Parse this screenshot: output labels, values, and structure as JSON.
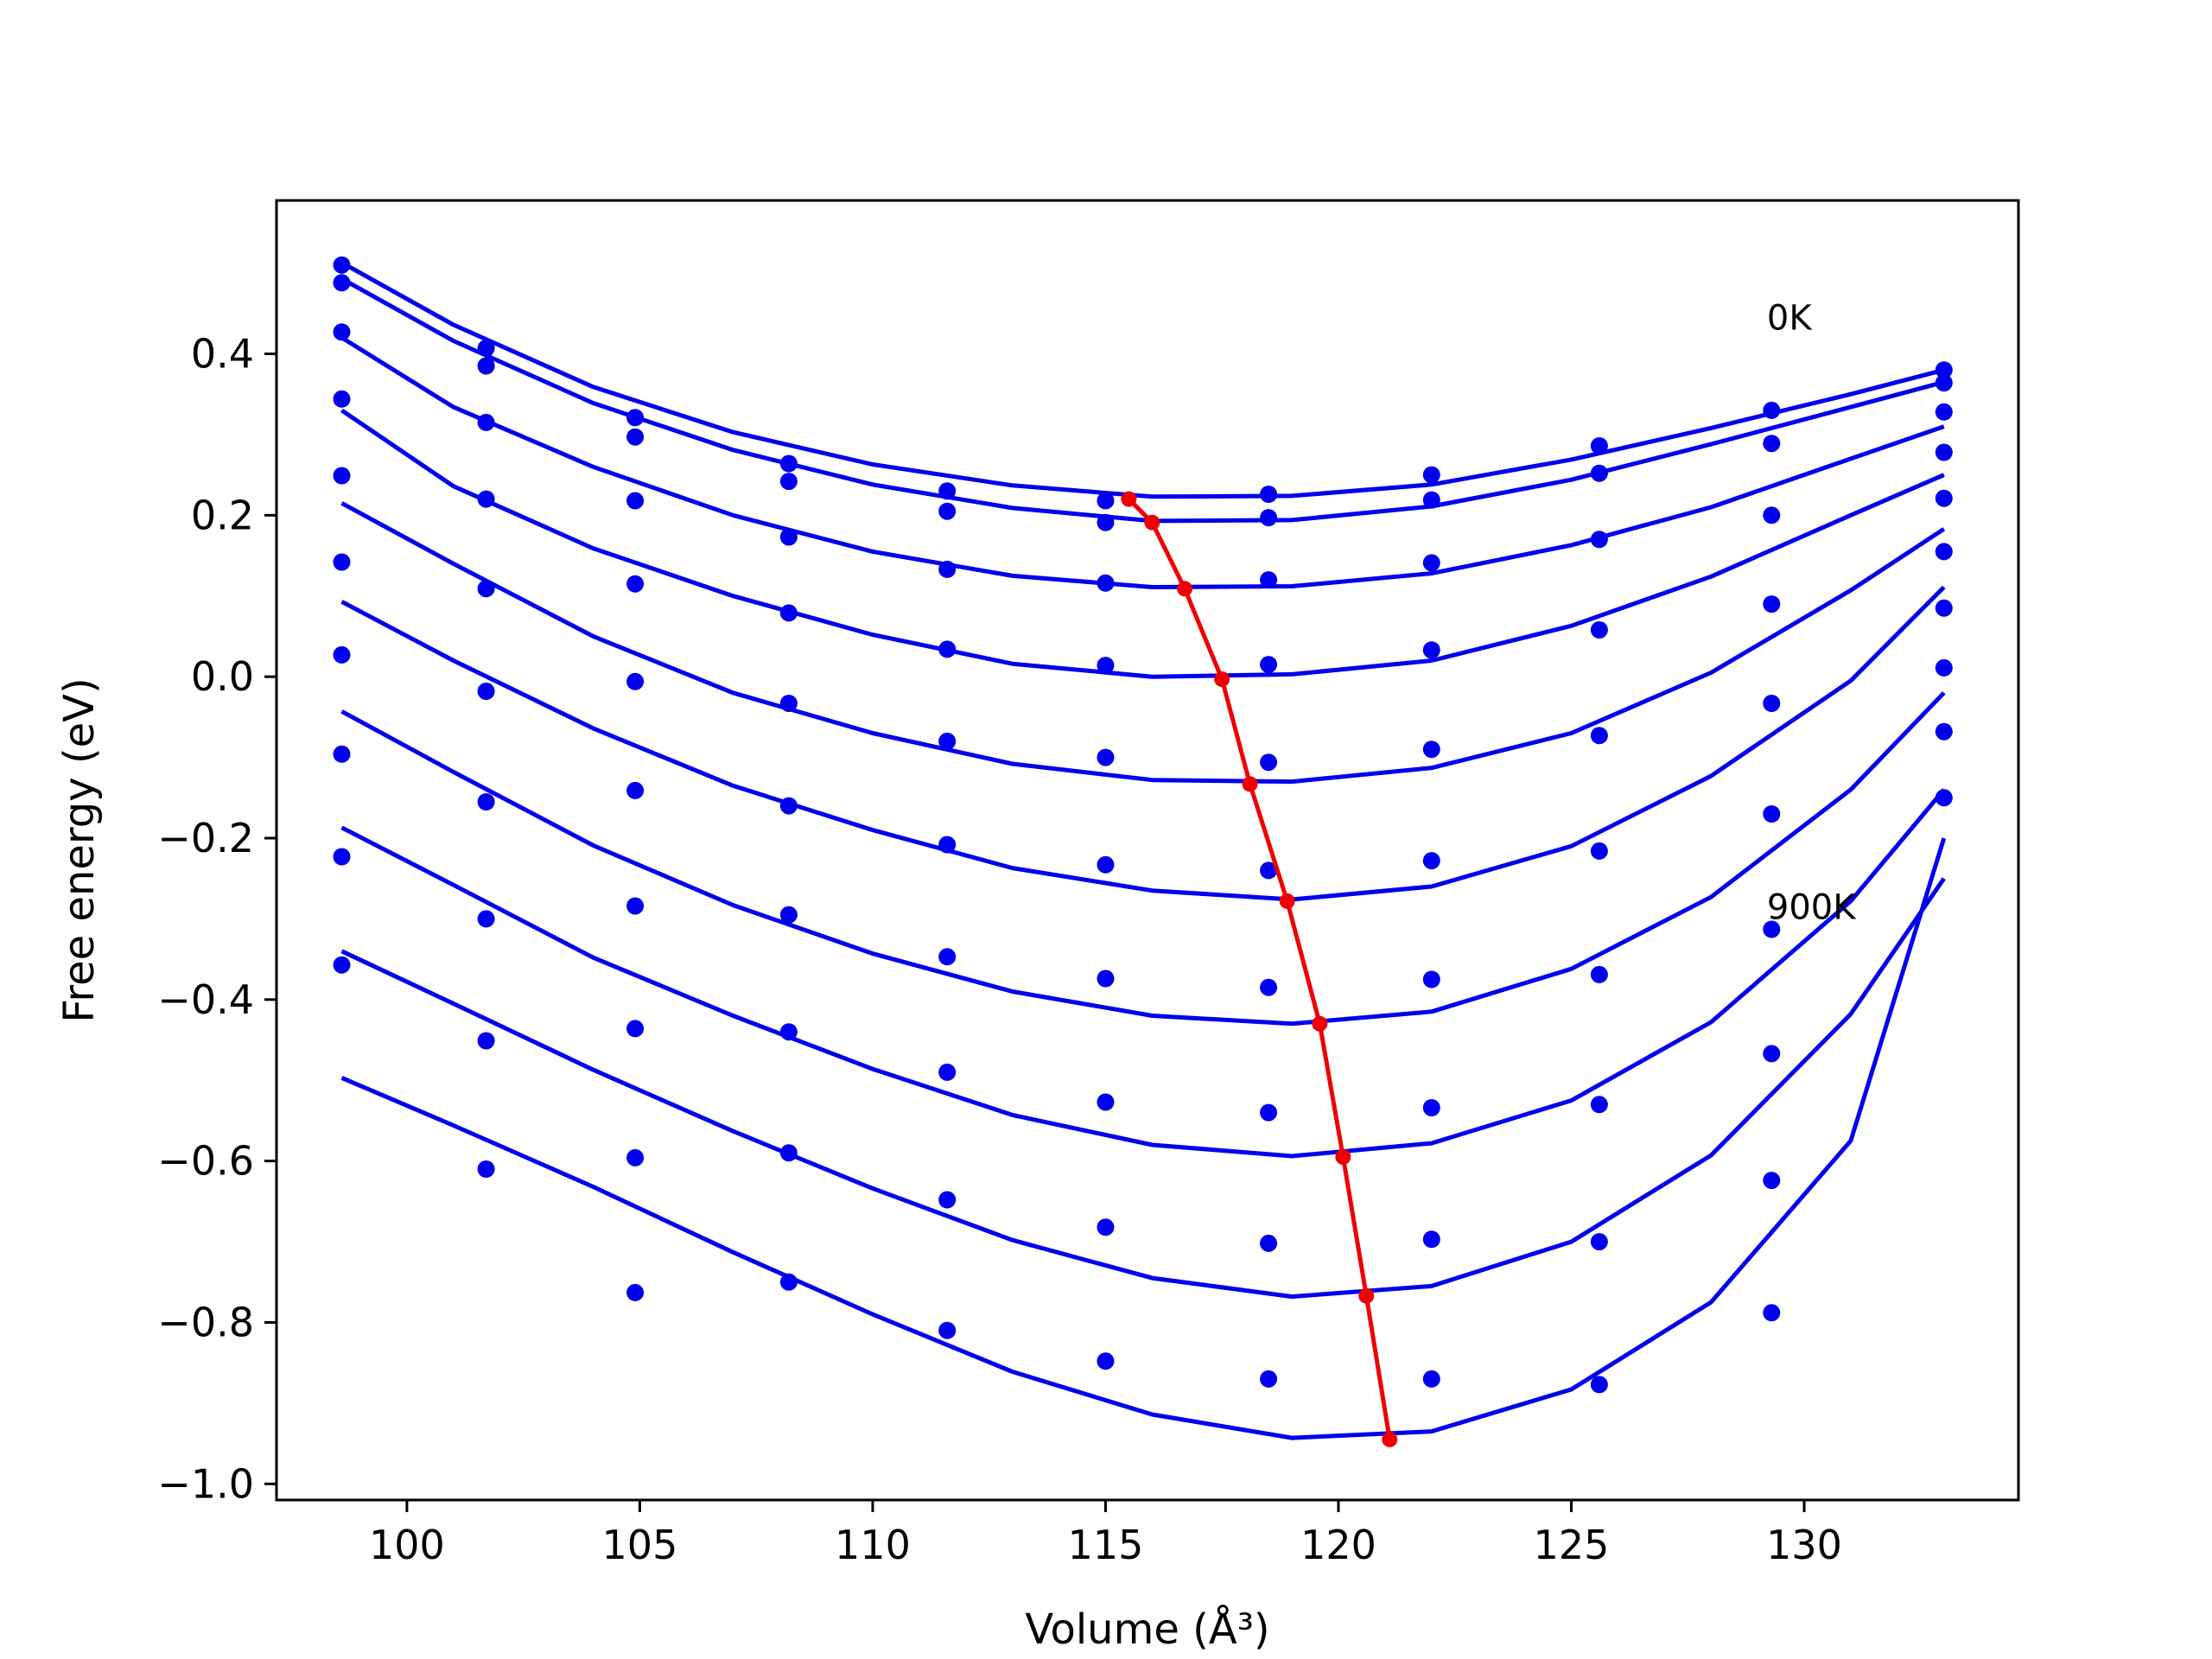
{
  "chart_data": {
    "type": "scatter",
    "xlabel": "Volume (Å³)",
    "ylabel": "Free energy (eV)",
    "xlim": [
      97.2,
      134.6
    ],
    "ylim": [
      -1.02,
      0.59
    ],
    "xticks": [
      100,
      105,
      110,
      115,
      120,
      125,
      130
    ],
    "xtick_labels": [
      "100",
      "105",
      "110",
      "115",
      "120",
      "125",
      "130"
    ],
    "yticks": [
      -1.0,
      -0.8,
      -0.6,
      -0.4,
      -0.2,
      0.0,
      0.2,
      0.4
    ],
    "ytick_labels": [
      "−1.0",
      "−0.8",
      "−0.6",
      "−0.4",
      "−0.2",
      "0.0",
      "0.2",
      "0.4"
    ],
    "grid": false,
    "colors": {
      "points": "#0000ee",
      "fits": "#0000ee",
      "minima": "#ee0000"
    },
    "annotations": [
      {
        "text": "0K",
        "x": 129.2,
        "y": 0.43
      },
      {
        "text": "900K",
        "x": 129.2,
        "y": -0.3
      }
    ],
    "point_volumes": [
      98.6,
      101.7,
      104.9,
      108.2,
      111.6,
      115.0,
      118.5,
      122.0,
      125.6,
      129.3,
      133.0
    ],
    "series": [
      {
        "data_points": [
          0.51,
          0.407,
          0.321,
          0.264,
          0.23,
          0.218,
          0.226,
          0.25,
          0.286,
          0.33,
          0.38
        ],
        "fit_x": [
          98.6,
          101,
          104,
          107,
          110,
          113,
          116,
          119,
          122,
          125,
          128,
          131,
          133
        ],
        "fit_y": [
          0.513,
          0.436,
          0.359,
          0.303,
          0.263,
          0.237,
          0.223,
          0.224,
          0.238,
          0.269,
          0.308,
          0.35,
          0.38
        ]
      },
      {
        "data_points": [
          0.488,
          0.385,
          0.297,
          0.242,
          0.205,
          0.191,
          0.197,
          0.219,
          0.252,
          0.289,
          0.364
        ],
        "fit_x": [
          98.6,
          101,
          104,
          107,
          110,
          113,
          116,
          119,
          122,
          125,
          128,
          131,
          133
        ],
        "fit_y": [
          0.493,
          0.416,
          0.339,
          0.281,
          0.238,
          0.209,
          0.193,
          0.194,
          0.211,
          0.244,
          0.288,
          0.334,
          0.365
        ]
      },
      {
        "data_points": [
          0.427,
          0.315,
          0.218,
          0.173,
          0.133,
          0.116,
          0.12,
          0.141,
          0.17,
          0.2,
          0.328
        ],
        "fit_x": [
          98.6,
          101,
          104,
          107,
          110,
          113,
          116,
          119,
          122,
          125,
          128,
          131,
          133
        ],
        "fit_y": [
          0.42,
          0.334,
          0.26,
          0.2,
          0.155,
          0.125,
          0.111,
          0.112,
          0.128,
          0.163,
          0.21,
          0.27,
          0.31
        ]
      },
      {
        "data_points": [
          0.344,
          0.22,
          0.115,
          0.079,
          0.034,
          0.014,
          0.015,
          0.033,
          0.058,
          0.09,
          0.278
        ],
        "fit_x": [
          98.6,
          101,
          104,
          107,
          110,
          113,
          116,
          119,
          122,
          125,
          128,
          131,
          133
        ],
        "fit_y": [
          0.33,
          0.236,
          0.159,
          0.1,
          0.052,
          0.016,
          0.0,
          0.003,
          0.02,
          0.063,
          0.124,
          0.2,
          0.25
        ]
      },
      {
        "data_points": [
          0.249,
          0.109,
          -0.006,
          -0.033,
          -0.08,
          -0.1,
          -0.106,
          -0.09,
          -0.073,
          -0.033,
          0.221
        ],
        "fit_x": [
          98.6,
          101,
          104,
          107,
          110,
          113,
          116,
          119,
          122,
          125,
          128,
          131,
          133
        ],
        "fit_y": [
          0.215,
          0.14,
          0.05,
          -0.02,
          -0.07,
          -0.108,
          -0.128,
          -0.13,
          -0.113,
          -0.07,
          0.005,
          0.107,
          0.183
        ]
      },
      {
        "data_points": [
          0.142,
          -0.018,
          -0.141,
          -0.16,
          -0.208,
          -0.233,
          -0.24,
          -0.228,
          -0.216,
          -0.17,
          0.155
        ],
        "fit_x": [
          98.6,
          101,
          104,
          107,
          110,
          113,
          116,
          119,
          122,
          125,
          128,
          131,
          133
        ],
        "fit_y": [
          0.093,
          0.02,
          -0.064,
          -0.135,
          -0.19,
          -0.237,
          -0.265,
          -0.276,
          -0.26,
          -0.21,
          -0.123,
          -0.005,
          0.111
        ]
      },
      {
        "data_points": [
          0.027,
          -0.155,
          -0.284,
          -0.295,
          -0.347,
          -0.374,
          -0.385,
          -0.375,
          -0.369,
          -0.313,
          0.085
        ],
        "fit_x": [
          98.6,
          101,
          104,
          107,
          110,
          113,
          116,
          119,
          122,
          125,
          128,
          131,
          133
        ],
        "fit_y": [
          -0.043,
          -0.118,
          -0.209,
          -0.283,
          -0.343,
          -0.39,
          -0.42,
          -0.43,
          -0.415,
          -0.362,
          -0.273,
          -0.14,
          -0.02
        ]
      },
      {
        "data_points": [
          -0.096,
          -0.3,
          -0.436,
          -0.44,
          -0.49,
          -0.527,
          -0.54,
          -0.534,
          -0.53,
          -0.467,
          0.011
        ],
        "fit_x": [
          98.6,
          101,
          104,
          107,
          110,
          113,
          116,
          119,
          122,
          125,
          128,
          131,
          133
        ],
        "fit_y": [
          -0.187,
          -0.258,
          -0.348,
          -0.42,
          -0.486,
          -0.543,
          -0.58,
          -0.594,
          -0.578,
          -0.525,
          -0.428,
          -0.278,
          -0.14
        ]
      },
      {
        "data_points": [
          -0.223,
          -0.451,
          -0.596,
          -0.59,
          -0.648,
          -0.682,
          -0.702,
          -0.697,
          -0.7,
          -0.624,
          -0.068
        ],
        "fit_x": [
          98.6,
          101,
          104,
          107,
          110,
          113,
          116,
          119,
          122,
          125,
          128,
          131,
          133
        ],
        "fit_y": [
          -0.34,
          -0.405,
          -0.487,
          -0.563,
          -0.634,
          -0.698,
          -0.745,
          -0.768,
          -0.755,
          -0.7,
          -0.593,
          -0.418,
          -0.25
        ]
      },
      {
        "data_points": [
          -0.357,
          -0.61,
          -0.763,
          -0.75,
          -0.81,
          -0.848,
          -0.87,
          -0.87,
          -0.877,
          -0.788,
          -0.15
        ],
        "fit_x": [
          98.6,
          101,
          104,
          107,
          110,
          113,
          116,
          119,
          122,
          125,
          128,
          131,
          133
        ],
        "fit_y": [
          -0.497,
          -0.556,
          -0.632,
          -0.713,
          -0.79,
          -0.861,
          -0.914,
          -0.943,
          -0.935,
          -0.883,
          -0.775,
          -0.575,
          -0.2
        ]
      }
    ],
    "minima_curve": {
      "x": [
        115.5,
        116.0,
        116.7,
        117.5,
        118.1,
        118.9,
        119.6,
        120.1,
        120.6,
        121.1
      ],
      "y": [
        0.22,
        0.191,
        0.109,
        -0.003,
        -0.133,
        -0.278,
        -0.43,
        -0.595,
        -0.767,
        -0.945
      ]
    }
  }
}
